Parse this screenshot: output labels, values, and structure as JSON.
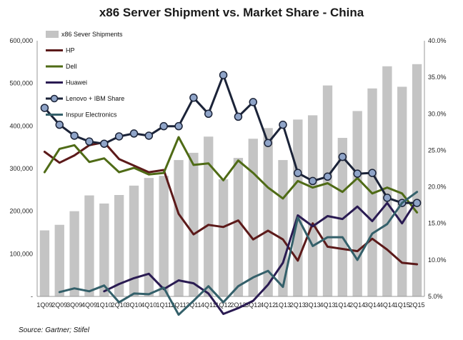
{
  "chart_data": {
    "type": "bar",
    "title": "x86 Server Shipment vs. Market Share - China",
    "source": "Source: Gartner; Stifel",
    "categories": [
      "1Q09",
      "2Q09",
      "3Q09",
      "4Q09",
      "1Q10",
      "2Q10",
      "3Q10",
      "4Q10",
      "1Q11",
      "2Q11",
      "3Q11",
      "4Q11",
      "1Q12",
      "2Q12",
      "3Q12",
      "4Q12",
      "1Q13",
      "2Q13",
      "3Q13",
      "4Q13",
      "1Q14",
      "2Q14",
      "3Q14",
      "4Q14",
      "1Q15",
      "2Q15"
    ],
    "y_left": {
      "ylim": [
        0,
        600000
      ],
      "ticks": [
        "-",
        "100,000",
        "200,000",
        "300,000",
        "400,000",
        "500,000",
        "600,000"
      ]
    },
    "y_right": {
      "ylim": [
        5,
        40
      ],
      "ticks": [
        "5.0%",
        "10.0%",
        "15.0%",
        "20.0%",
        "25.0%",
        "30.0%",
        "35.0%",
        "40.0%"
      ]
    },
    "grid": false,
    "legend_position": "top-left",
    "bars": {
      "name": "x86 Sever Shipments",
      "color": "#c4c4c4",
      "values": [
        155000,
        168000,
        200000,
        237000,
        218000,
        238000,
        260000,
        278000,
        283000,
        320000,
        337000,
        375000,
        275000,
        325000,
        370000,
        395000,
        320000,
        415000,
        425000,
        495000,
        372000,
        435000,
        488000,
        540000,
        492000,
        545000
      ]
    },
    "lines": [
      {
        "name": "HP",
        "color": "#5c1a1a",
        "marker": false,
        "values": [
          24.8,
          23.3,
          24.3,
          25.7,
          26.1,
          23.8,
          22.9,
          22.0,
          22.3,
          16.3,
          13.5,
          14.8,
          14.5,
          15.4,
          12.8,
          14.0,
          12.8,
          9.9,
          15.0,
          11.8,
          11.5,
          11.2,
          12.9,
          11.4,
          9.6,
          9.4
        ]
      },
      {
        "name": "Dell",
        "color": "#4f6b16",
        "marker": false,
        "values": [
          22.0,
          25.2,
          25.7,
          23.4,
          23.9,
          22.0,
          22.6,
          21.7,
          21.9,
          26.8,
          23.0,
          23.2,
          20.9,
          23.6,
          21.9,
          19.9,
          18.4,
          20.8,
          19.9,
          20.5,
          19.3,
          21.2,
          19.1,
          19.9,
          19.1,
          16.5
        ]
      },
      {
        "name": "Huawei",
        "color": "#2a1b52",
        "marker": false,
        "values": [
          null,
          null,
          null,
          null,
          5.7,
          6.7,
          7.5,
          8.1,
          6.0,
          7.2,
          6.8,
          5.4,
          2.6,
          3.4,
          4.4,
          6.6,
          9.6,
          16.1,
          14.6,
          16.0,
          15.6,
          17.3,
          15.3,
          17.8,
          15.0,
          18.2
        ]
      },
      {
        "name": "Lenovo + IBM Share",
        "color": "#1b2338",
        "marker": true,
        "values": [
          30.8,
          28.5,
          27.0,
          26.2,
          25.9,
          26.9,
          27.3,
          27.0,
          28.3,
          28.3,
          32.2,
          30.0,
          35.3,
          29.6,
          31.6,
          26.0,
          28.5,
          21.9,
          20.8,
          21.4,
          24.1,
          21.8,
          21.9,
          18.5,
          17.8,
          17.8
        ]
      },
      {
        "name": "Inspur Electronics",
        "color": "#34606a",
        "marker": false,
        "values": [
          null,
          5.6,
          6.1,
          5.7,
          6.5,
          4.2,
          5.4,
          5.3,
          6.2,
          2.5,
          4.4,
          6.4,
          4.2,
          6.4,
          7.6,
          8.5,
          6.3,
          15.8,
          11.9,
          13.1,
          13.1,
          10.0,
          13.6,
          14.9,
          17.8,
          19.3
        ]
      }
    ]
  }
}
